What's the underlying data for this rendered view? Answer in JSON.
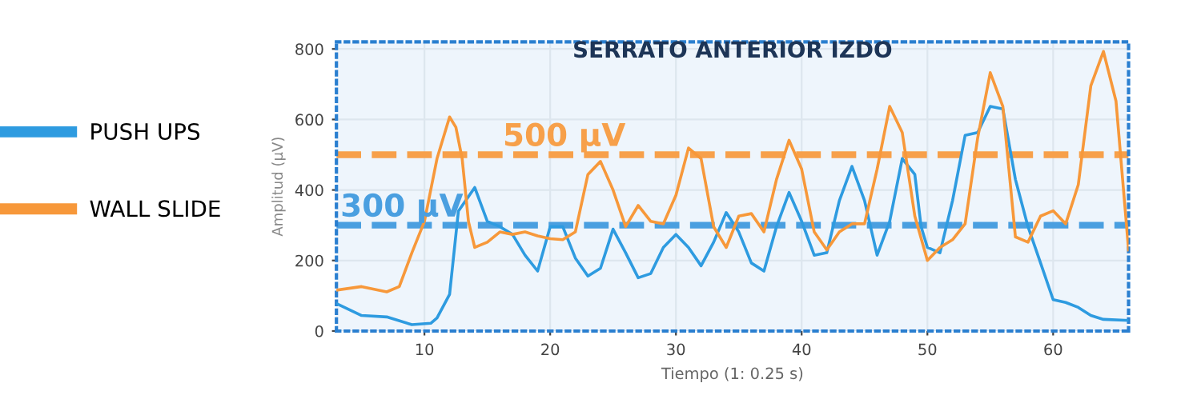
{
  "chart_data": {
    "type": "line",
    "title": "SERRATO ANTERIOR IZDO",
    "xlabel": "Tiempo (1: 0.25 s)",
    "ylabel": "Amplitud (µV)",
    "series": [
      {
        "name": "PUSH UPS",
        "color": "#2e9be0",
        "x": [
          3,
          5,
          7,
          9,
          10.5,
          11,
          12,
          12.7,
          14,
          15,
          16,
          17,
          18,
          19,
          20,
          21,
          22,
          23,
          24,
          25,
          26,
          27,
          28,
          29,
          30,
          31,
          32,
          33,
          34,
          35,
          36,
          37,
          38,
          39,
          40,
          41,
          42,
          43,
          44,
          45,
          46,
          47,
          48,
          49,
          49.5,
          50,
          51,
          52,
          53,
          54,
          55,
          56,
          57,
          58,
          59,
          60,
          61,
          62,
          63,
          64,
          66
        ],
        "values": [
          78,
          44,
          40,
          18,
          22,
          37,
          104,
          340,
          407,
          311,
          296,
          274,
          215,
          170,
          296,
          296,
          207,
          156,
          178,
          289,
          222,
          151,
          163,
          237,
          274,
          237,
          185,
          252,
          336,
          281,
          193,
          170,
          296,
          393,
          311,
          215,
          222,
          370,
          467,
          370,
          215,
          311,
          489,
          444,
          296,
          237,
          222,
          370,
          555,
          563,
          637,
          630,
          430,
          296,
          193,
          89,
          81,
          67,
          44,
          33,
          30
        ]
      },
      {
        "name": "WALL SLIDE",
        "color": "#f7983a",
        "x": [
          3,
          5,
          7,
          8,
          9,
          10,
          11,
          12,
          12.5,
          13,
          13.5,
          14,
          15,
          16,
          17,
          18,
          19,
          20,
          21,
          22,
          23,
          24,
          25,
          26,
          27,
          28,
          29,
          30,
          31,
          32,
          33,
          34,
          35,
          36,
          37,
          38,
          39,
          40,
          41,
          42,
          43,
          44,
          45,
          46,
          47,
          48,
          49,
          50,
          51,
          52,
          53,
          54,
          55,
          56,
          57,
          58,
          59,
          60,
          61,
          62,
          63,
          64,
          65,
          66
        ],
        "values": [
          116,
          126,
          111,
          126,
          222,
          311,
          489,
          607,
          578,
          489,
          311,
          237,
          252,
          281,
          274,
          281,
          270,
          262,
          259,
          281,
          444,
          481,
          400,
          296,
          356,
          311,
          304,
          385,
          519,
          489,
          296,
          237,
          326,
          333,
          281,
          430,
          541,
          459,
          281,
          230,
          281,
          304,
          304,
          459,
          637,
          563,
          326,
          200,
          237,
          259,
          304,
          548,
          733,
          637,
          267,
          252,
          326,
          341,
          304,
          415,
          696,
          793,
          652,
          230
        ]
      }
    ],
    "ref_lines": [
      {
        "axis": "y",
        "value": 300,
        "label": "300 µV",
        "color": "#4a9fe0",
        "line_style": "dashed"
      },
      {
        "axis": "y",
        "value": 500,
        "label": "500 µV",
        "color": "#f7a04a",
        "line_style": "dashed"
      }
    ],
    "xlim": [
      3,
      66
    ],
    "ylim": [
      0,
      820
    ],
    "xticks": [
      10,
      20,
      30,
      40,
      50,
      60
    ],
    "yticks": [
      0,
      200,
      400,
      600,
      800
    ],
    "grid": true,
    "legend": "left",
    "marker": "none",
    "line_style": "solid"
  }
}
